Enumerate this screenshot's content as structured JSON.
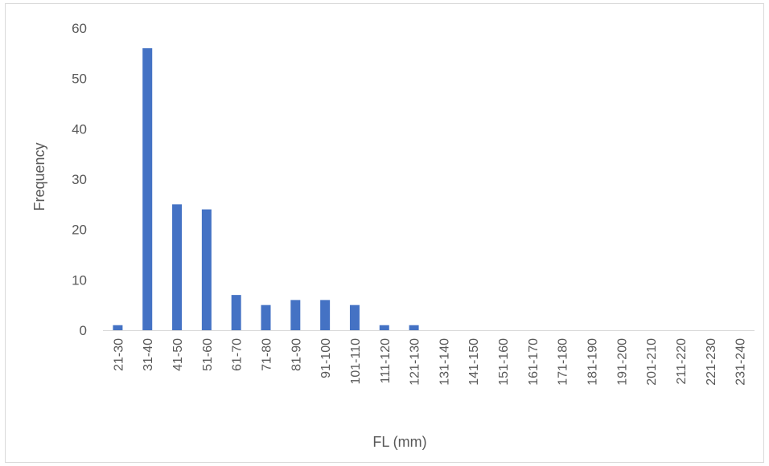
{
  "chart_data": {
    "type": "bar",
    "categories": [
      "21-30",
      "31-40",
      "41-50",
      "51-60",
      "61-70",
      "71-80",
      "81-90",
      "91-100",
      "101-110",
      "111-120",
      "121-130",
      "131-140",
      "141-150",
      "151-160",
      "161-170",
      "171-180",
      "181-190",
      "191-200",
      "201-210",
      "211-220",
      "221-230",
      "231-240"
    ],
    "series": [
      {
        "values": [
          1,
          56,
          25,
          24,
          7,
          5,
          6,
          6,
          5,
          1,
          1,
          0,
          0,
          0,
          0,
          0,
          0,
          0,
          0,
          0,
          0,
          0
        ]
      }
    ],
    "xlabel": "FL (mm)",
    "ylabel": "Frequency",
    "ylim": [
      0,
      60
    ],
    "yticks": [
      0,
      10,
      20,
      30,
      40,
      50,
      60
    ],
    "grid": false,
    "legend": "none",
    "bar_color": "#4472c4",
    "axis_color": "#d9d9d9",
    "text_color": "#595959"
  }
}
